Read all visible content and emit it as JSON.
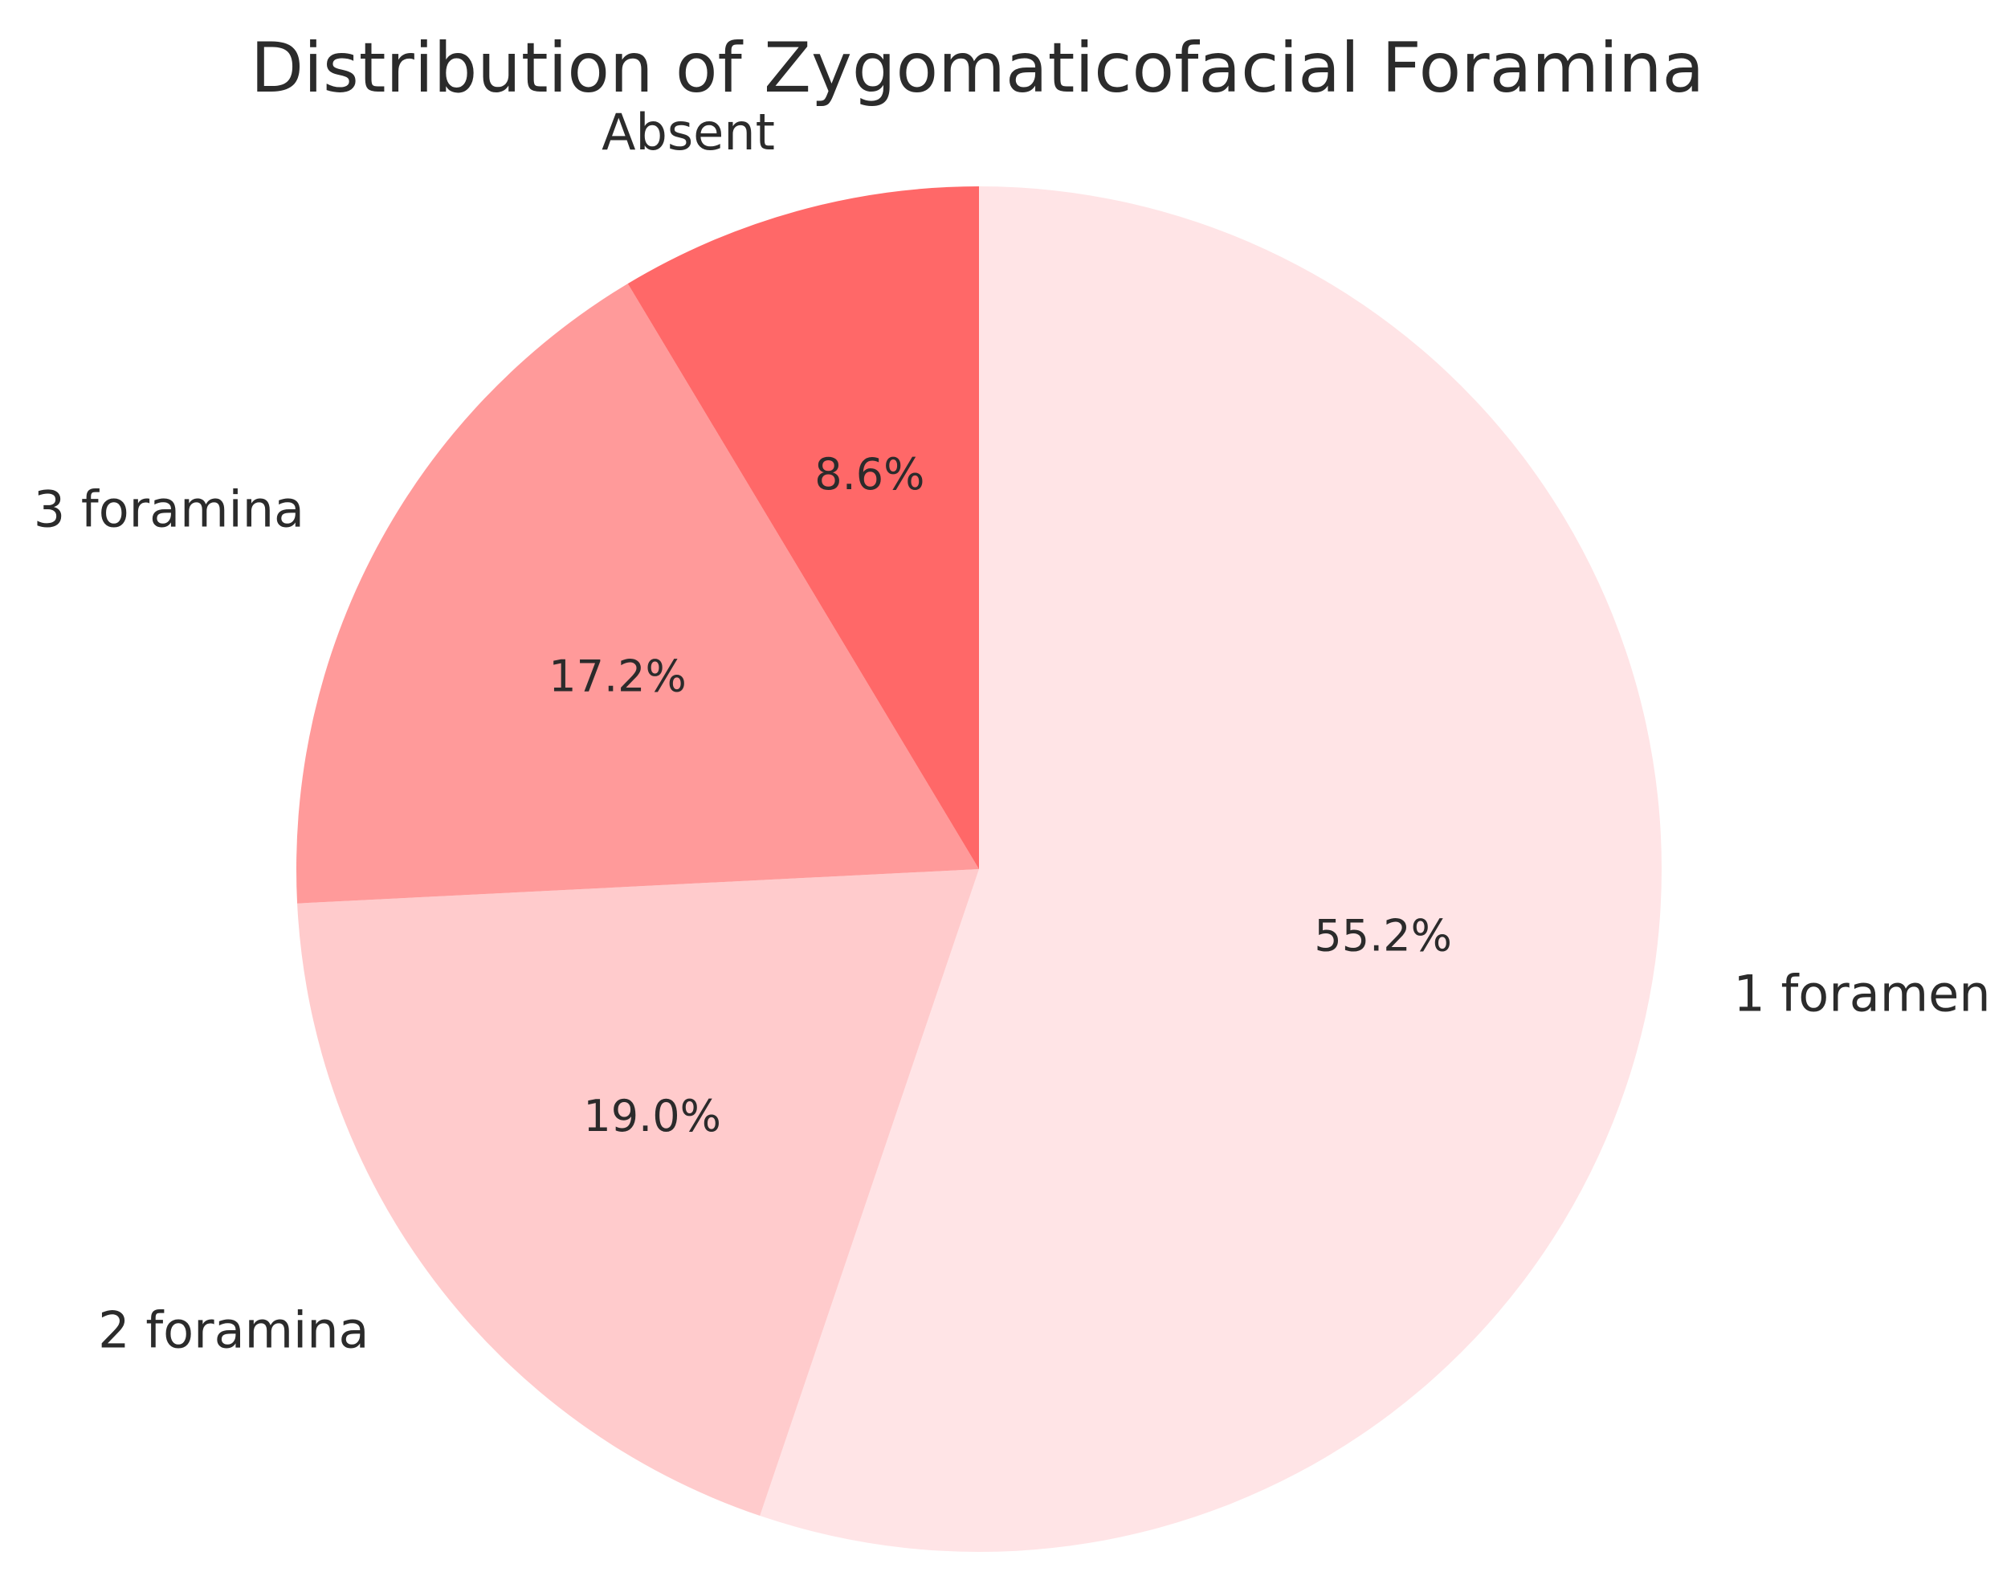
{
  "chart_data": {
    "type": "pie",
    "title": "Distribution of Zygomaticofacial Foramina",
    "start_angle_deg": 90,
    "direction": "clockwise",
    "slices": [
      {
        "label": "1 foramen",
        "value": 55.2,
        "pct_label": "55.2%",
        "color": "#ffe4e6"
      },
      {
        "label": "2 foramina",
        "value": 19.0,
        "pct_label": "19.0%",
        "color": "#ffcbcc"
      },
      {
        "label": "3 foramina",
        "value": 17.2,
        "pct_label": "17.2%",
        "color": "#ff9a9a"
      },
      {
        "label": "Absent",
        "value": 8.6,
        "pct_label": "8.6%",
        "color": "#ff6868"
      }
    ]
  }
}
